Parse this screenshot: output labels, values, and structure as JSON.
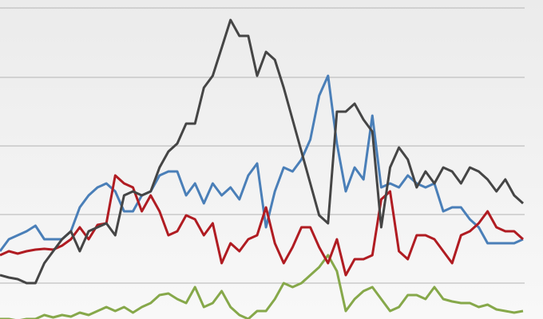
{
  "chart_data": {
    "type": "line",
    "x": [
      0,
      1,
      2,
      3,
      4,
      5,
      6,
      7,
      8,
      9,
      10,
      11,
      12,
      13,
      14,
      15,
      16,
      17,
      18,
      19,
      20,
      21,
      22,
      23,
      24,
      25,
      26,
      27,
      28,
      29,
      30,
      31,
      32,
      33,
      34,
      35,
      36,
      37,
      38,
      39,
      40,
      41,
      42,
      43,
      44,
      45,
      46,
      47,
      48,
      49,
      50,
      51,
      52,
      53,
      54,
      55,
      56,
      57,
      58,
      59
    ],
    "xlim": [
      0,
      61.25
    ],
    "ylim": [
      0,
      400
    ],
    "yticks": [
      45,
      131,
      217,
      303,
      390
    ],
    "grid": true,
    "series": [
      {
        "color": "#86a84a",
        "values": [
          0,
          0,
          -2,
          0,
          0,
          5,
          2,
          5,
          3,
          8,
          5,
          10,
          15,
          10,
          15,
          8,
          15,
          20,
          30,
          32,
          25,
          20,
          40,
          15,
          20,
          35,
          15,
          5,
          0,
          10,
          10,
          25,
          45,
          40,
          45,
          55,
          65,
          80,
          60,
          10,
          25,
          35,
          40,
          25,
          10,
          15,
          30,
          30,
          25,
          40,
          25,
          22,
          20,
          20,
          15,
          18,
          12,
          10,
          8,
          10
        ]
      },
      {
        "color": "#4a7fb8",
        "values": [
          85,
          100,
          105,
          110,
          117,
          100,
          100,
          100,
          110,
          140,
          155,
          165,
          170,
          160,
          135,
          135,
          155,
          160,
          180,
          185,
          185,
          155,
          170,
          145,
          170,
          155,
          165,
          150,
          180,
          195,
          115,
          160,
          190,
          185,
          200,
          225,
          280,
          305,
          220,
          160,
          190,
          175,
          255,
          165,
          170,
          165,
          180,
          170,
          165,
          170,
          135,
          140,
          140,
          125,
          115,
          95,
          95,
          95,
          95,
          100
        ]
      },
      {
        "color": "#b01c22",
        "values": [
          80,
          85,
          82,
          85,
          87,
          88,
          87,
          92,
          100,
          115,
          100,
          118,
          120,
          180,
          170,
          165,
          135,
          155,
          135,
          105,
          110,
          130,
          125,
          105,
          120,
          70,
          95,
          85,
          100,
          105,
          140,
          95,
          70,
          90,
          115,
          115,
          90,
          70,
          100,
          55,
          75,
          75,
          80,
          150,
          160,
          85,
          75,
          105,
          105,
          100,
          85,
          70,
          105,
          110,
          120,
          135,
          115,
          110,
          110,
          100
        ]
      },
      {
        "color": "#454545",
        "values": [
          55,
          52,
          50,
          45,
          45,
          70,
          85,
          100,
          110,
          85,
          110,
          115,
          120,
          105,
          155,
          160,
          155,
          160,
          190,
          210,
          220,
          245,
          245,
          290,
          305,
          340,
          375,
          355,
          355,
          305,
          335,
          325,
          290,
          250,
          210,
          170,
          130,
          120,
          260,
          260,
          270,
          250,
          235,
          115,
          190,
          215,
          200,
          165,
          185,
          170,
          190,
          185,
          170,
          190,
          185,
          175,
          160,
          175,
          155,
          145
        ]
      }
    ]
  }
}
